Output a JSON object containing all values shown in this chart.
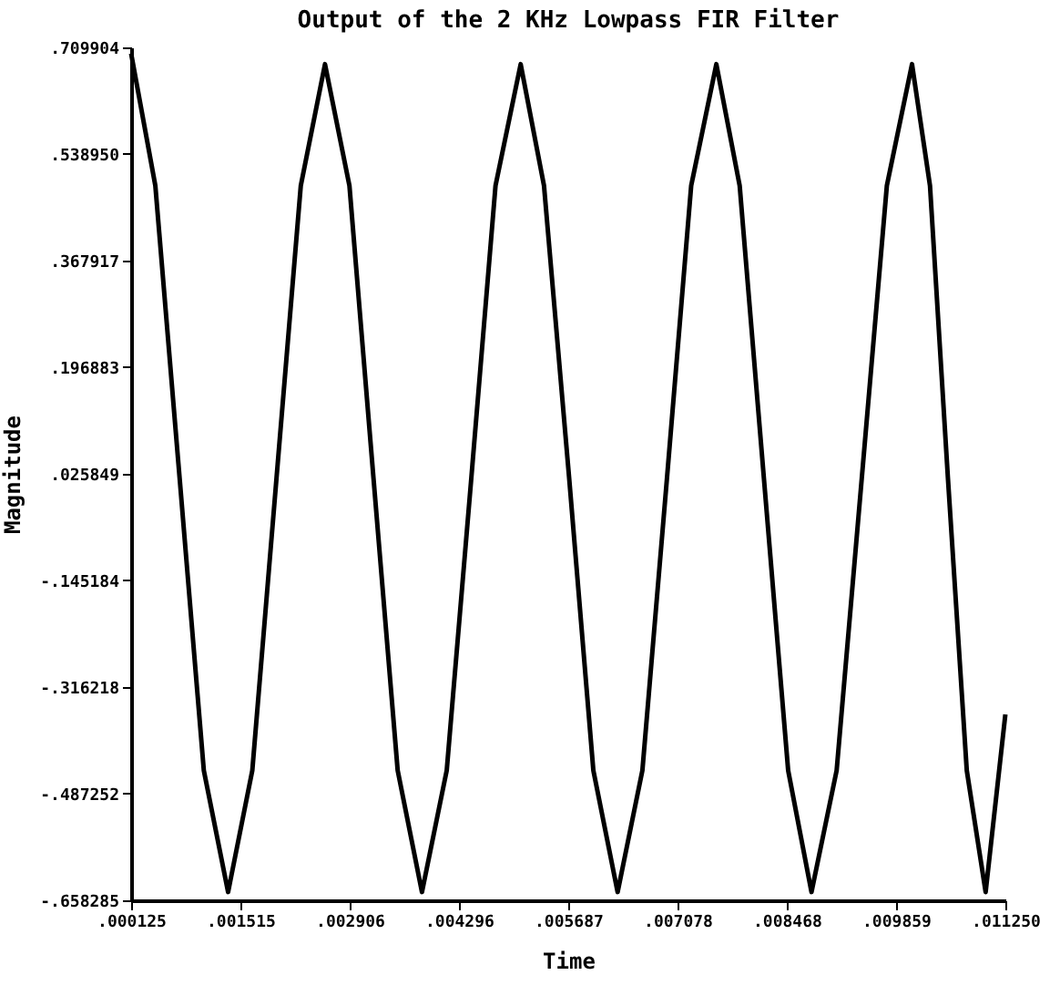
{
  "chart_data": {
    "type": "line",
    "title": "Output of the 2 KHz  Lowpass FIR Filter",
    "xlabel": "Time",
    "ylabel": "Magnitude",
    "x": [
      0.000125,
      0.000433,
      0.000742,
      0.00105,
      0.001359,
      0.001667,
      0.001975,
      0.002284,
      0.002592,
      0.002903,
      0.003209,
      0.003517,
      0.003826,
      0.004141,
      0.004454,
      0.004762,
      0.005082,
      0.005379,
      0.005699,
      0.006007,
      0.006316,
      0.006631,
      0.006944,
      0.007252,
      0.007572,
      0.007869,
      0.008177,
      0.008486,
      0.008783,
      0.009103,
      0.009423,
      0.009742,
      0.010062,
      0.010291,
      0.010519,
      0.010759,
      0.010999,
      0.01125
    ],
    "series": [
      {
        "color": "#000000",
        "values": [
          0.7,
          0.488,
          0.019,
          -0.45,
          -0.645,
          -0.45,
          0.019,
          0.488,
          0.683,
          0.488,
          0.019,
          -0.45,
          -0.645,
          -0.45,
          0.019,
          0.488,
          0.683,
          0.488,
          0.019,
          -0.45,
          -0.645,
          -0.45,
          0.019,
          0.488,
          0.683,
          0.488,
          0.019,
          -0.45,
          -0.645,
          -0.45,
          0.019,
          0.488,
          0.683,
          0.488,
          0.019,
          -0.45,
          -0.645,
          -0.36
        ]
      }
    ],
    "xlim": [
      0.000125,
      0.01125
    ],
    "xticks": [
      {
        "value": 0.000125,
        "label": ".000125"
      },
      {
        "value": 0.001515,
        "label": ".001515"
      },
      {
        "value": 0.002906,
        "label": ".002906"
      },
      {
        "value": 0.004296,
        "label": ".004296"
      },
      {
        "value": 0.005687,
        "label": ".005687"
      },
      {
        "value": 0.007078,
        "label": ".007078"
      },
      {
        "value": 0.008468,
        "label": ".008468"
      },
      {
        "value": 0.009859,
        "label": ".009859"
      },
      {
        "value": 0.01125,
        "label": ".011250"
      }
    ],
    "ylim": [
      -0.658285,
      0.709904
    ],
    "yticks": [
      {
        "value": -0.658285,
        "label": "-.658285"
      },
      {
        "value": -0.487252,
        "label": "-.487252"
      },
      {
        "value": -0.316218,
        "label": "-.316218"
      },
      {
        "value": -0.145184,
        "label": "-.145184"
      },
      {
        "value": 0.025849,
        "label": ".025849"
      },
      {
        "value": 0.196883,
        "label": ".196883"
      },
      {
        "value": 0.367917,
        "label": ".367917"
      },
      {
        "value": 0.53895,
        "label": ".538950"
      },
      {
        "value": 0.709904,
        "label": ".709904"
      }
    ],
    "grid": false,
    "marker": "none",
    "line_style": "solid"
  }
}
